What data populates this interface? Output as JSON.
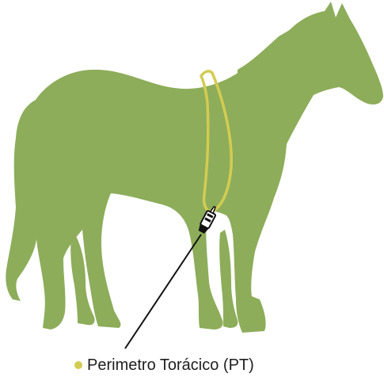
{
  "figure": {
    "subject": "horse",
    "measurement": {
      "label": "Perimetro Torácico (PT)",
      "color": "#d2cc52"
    },
    "colors": {
      "horse": "#8dad5a",
      "pointer": "#111111",
      "background": "#ffffff"
    },
    "icons": {
      "tape_tool": "measuring-tape-icon"
    }
  }
}
